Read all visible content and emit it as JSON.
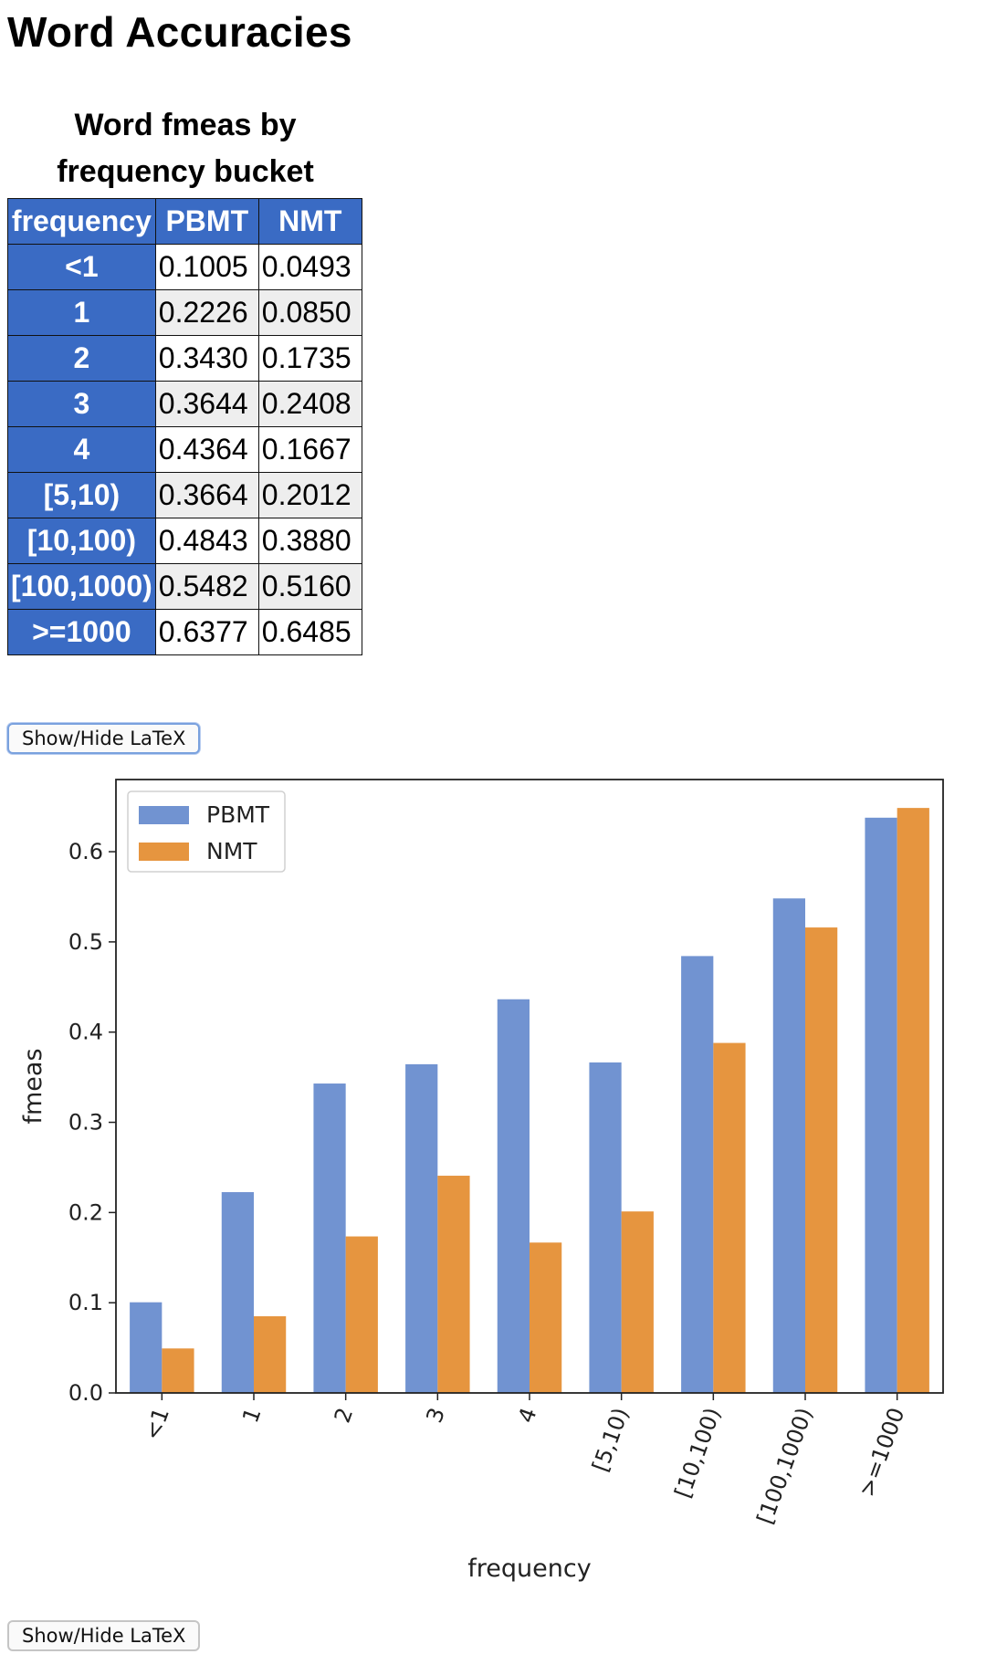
{
  "page": {
    "title": "Word Accuracies",
    "button_label": "Show/Hide LaTeX"
  },
  "table": {
    "caption": "Word fmeas by frequency bucket",
    "headers": [
      "frequency",
      "PBMT",
      "NMT"
    ],
    "rows": [
      {
        "bucket": "<1",
        "pbmt": "0.1005",
        "nmt": "0.0493"
      },
      {
        "bucket": "1",
        "pbmt": "0.2226",
        "nmt": "0.0850"
      },
      {
        "bucket": "2",
        "pbmt": "0.3430",
        "nmt": "0.1735"
      },
      {
        "bucket": "3",
        "pbmt": "0.3644",
        "nmt": "0.2408"
      },
      {
        "bucket": "4",
        "pbmt": "0.4364",
        "nmt": "0.1667"
      },
      {
        "bucket": "[5,10)",
        "pbmt": "0.3664",
        "nmt": "0.2012"
      },
      {
        "bucket": "[10,100)",
        "pbmt": "0.4843",
        "nmt": "0.3880"
      },
      {
        "bucket": "[100,1000)",
        "pbmt": "0.5482",
        "nmt": "0.5160"
      },
      {
        "bucket": ">=1000",
        "pbmt": "0.6377",
        "nmt": "0.6485"
      }
    ]
  },
  "chart_data": {
    "type": "bar",
    "title": "",
    "xlabel": "frequency",
    "ylabel": "fmeas",
    "categories": [
      "<1",
      "1",
      "2",
      "3",
      "4",
      "[5,10)",
      "[10,100)",
      "[100,1000)",
      ">=1000"
    ],
    "series": [
      {
        "name": "PBMT",
        "color": "#7193d1",
        "values": [
          0.1005,
          0.2226,
          0.343,
          0.3644,
          0.4364,
          0.3664,
          0.4843,
          0.5482,
          0.6377
        ]
      },
      {
        "name": "NMT",
        "color": "#e6953f",
        "values": [
          0.0493,
          0.085,
          0.1735,
          0.2408,
          0.1667,
          0.2012,
          0.388,
          0.516,
          0.6485
        ]
      }
    ],
    "ylim": [
      0,
      0.68
    ],
    "yticks": [
      0.0,
      0.1,
      0.2,
      0.3,
      0.4,
      0.5,
      0.6
    ],
    "ytick_labels": [
      "0.0",
      "0.1",
      "0.2",
      "0.3",
      "0.4",
      "0.5",
      "0.6"
    ],
    "legend_position": "top-left",
    "grid": false
  }
}
